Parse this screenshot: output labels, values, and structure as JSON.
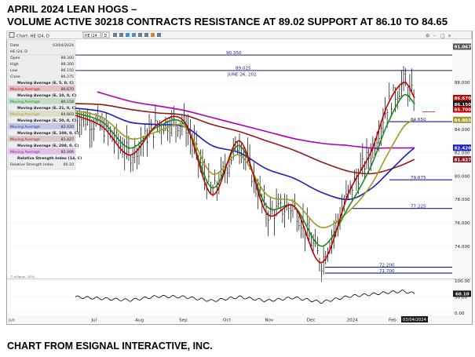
{
  "headline": {
    "line1": "APRIL 2024 LEAN HOGS –",
    "line2": "VOLUME ACTIVE 30218 CONTRACTS  RESISTANCE AT 89.02  SUPPORT AT 86.10 TO 84.65"
  },
  "footer": "CHART FROM ESIGNAL INTERACTIVE, INC.",
  "toolbar": {
    "chart_label": "Chart: HE I24, D",
    "symbol_input": "HE I24",
    "interval": "D"
  },
  "data_window": {
    "rows": [
      {
        "label": "Date",
        "value": "03/04/2024",
        "style": "plain"
      },
      {
        "label": "HE I24, D",
        "value": "",
        "style": "plain"
      },
      {
        "label": "Open",
        "value": "88.300",
        "style": "plain"
      },
      {
        "label": "High",
        "value": "88.300",
        "style": "plain"
      },
      {
        "label": "Low",
        "value": "86.150",
        "style": "plain"
      },
      {
        "label": "Close",
        "value": "86.275",
        "style": "plain"
      },
      {
        "label": "Moving Average (E, 5, 0, C)",
        "value": "",
        "style": "header"
      },
      {
        "label": "Moving Average",
        "value": "86.670",
        "style": "ma5"
      },
      {
        "label": "Moving Average (E, 10, 0, C)",
        "value": "",
        "style": "header"
      },
      {
        "label": "Moving Average",
        "value": "86.158",
        "style": "ma10"
      },
      {
        "label": "Moving Average (E, 21, 0, C)",
        "value": "",
        "style": "header"
      },
      {
        "label": "Moving Average",
        "value": "84.803",
        "style": "ma21"
      },
      {
        "label": "Moving Average (E, 50, 0, C)",
        "value": "",
        "style": "header"
      },
      {
        "label": "Moving Average",
        "value": "82.420",
        "style": "ma50"
      },
      {
        "label": "Moving Average (E, 100, 0, C)",
        "value": "",
        "style": "header"
      },
      {
        "label": "Moving Average",
        "value": "81.427",
        "style": "ma100"
      },
      {
        "label": "Moving Average (E, 200, 0, C)",
        "value": "",
        "style": "header"
      },
      {
        "label": "Moving Average",
        "value": "82.406",
        "style": "ma200"
      },
      {
        "label": "Relative Strength Index (14, C)",
        "value": "",
        "style": "header"
      },
      {
        "label": "Relative Strength Index",
        "value": "60.10",
        "style": "plain"
      }
    ]
  },
  "watermark": "© eSignal, 2024",
  "colors": {
    "ma5": "#c00000",
    "ma10": "#1a8a1a",
    "ma21": "#a09a20",
    "ma50": "#1c1cc0",
    "ma100": "#8b1a1a",
    "ma200": "#b000b0",
    "level_line": "#1a1a80",
    "price_bars": "#000000",
    "rsi_line": "#000000"
  },
  "chart_data": [
    {
      "type": "line",
      "title": "",
      "x_tick_labels": [
        "Jul",
        "Aug",
        "Sep",
        "Oct",
        "Nov",
        "Dec",
        "2024",
        "Feb"
      ],
      "x_current_label": "03/04/2024",
      "y_tick_labels": [
        "74.000",
        "76.000",
        "78.000",
        "80.000",
        "82.000",
        "84.000",
        "86.000",
        "88.000"
      ],
      "ylim": [
        71.5,
        91.5
      ],
      "price_badges": [
        {
          "value": "91.067",
          "color": "#555555"
        },
        {
          "value": "86.670",
          "color": "#c00000"
        },
        {
          "value": "86.150",
          "color": "#111111"
        },
        {
          "value": "85.700",
          "color": "#c00000"
        },
        {
          "value": "84.803",
          "color": "#a09a20"
        },
        {
          "value": "82.420",
          "color": "#1c1cc0"
        },
        {
          "value": "81.427",
          "color": "#8b1a1a"
        }
      ],
      "levels": [
        {
          "value": 90.35,
          "label": "90.350"
        },
        {
          "value": 89.025,
          "label": "89.025",
          "sublabel": "JUNE 26, 202"
        },
        {
          "value": 84.65,
          "label": "84.650"
        },
        {
          "value": 79.675,
          "label": "79.675"
        },
        {
          "value": 77.225,
          "label": "77.225"
        },
        {
          "value": 72.2,
          "label": "72.200"
        },
        {
          "value": 71.7,
          "label": "71.700"
        }
      ],
      "series": [
        {
          "key": "ma5",
          "name": "Moving Average (E, 5, 0, C)",
          "x": [
            0,
            20,
            40,
            60,
            80,
            100,
            120,
            140,
            160,
            180,
            200,
            216,
            228,
            240,
            248
          ],
          "y": [
            85.2,
            84.2,
            81.8,
            84.4,
            84.6,
            78.4,
            83.0,
            76.8,
            77.4,
            72.6,
            78.6,
            82.0,
            86.0,
            88.0,
            86.67
          ]
        },
        {
          "key": "ma10",
          "name": "Moving Average (E, 10, 0, C)",
          "x": [
            0,
            20,
            40,
            60,
            80,
            100,
            120,
            140,
            160,
            180,
            200,
            216,
            228,
            240,
            248
          ],
          "y": [
            85.4,
            84.6,
            82.4,
            84.2,
            84.4,
            79.0,
            82.6,
            77.4,
            77.4,
            74.0,
            77.4,
            80.8,
            84.4,
            86.9,
            86.16
          ]
        },
        {
          "key": "ma21",
          "name": "Moving Average (E, 21, 0, C)",
          "x": [
            0,
            20,
            40,
            60,
            80,
            100,
            120,
            140,
            160,
            180,
            200,
            216,
            228,
            240,
            248
          ],
          "y": [
            85.6,
            85.0,
            83.2,
            83.8,
            84.2,
            80.2,
            81.8,
            78.4,
            77.8,
            75.6,
            77.0,
            79.2,
            81.8,
            84.2,
            84.8
          ]
        },
        {
          "key": "ma50",
          "name": "Moving Average (E, 50, 0, C)",
          "x": [
            0,
            20,
            40,
            60,
            80,
            100,
            120,
            140,
            160,
            180,
            200,
            216,
            228,
            240,
            248
          ],
          "y": [
            85.8,
            85.5,
            84.6,
            84.4,
            84.2,
            82.6,
            82.0,
            80.6,
            79.8,
            78.6,
            78.0,
            78.9,
            80.2,
            81.6,
            82.42
          ]
        },
        {
          "key": "ma100",
          "name": "Moving Average (E, 100, 0, C)",
          "x": [
            0,
            20,
            40,
            60,
            80,
            100,
            120,
            140,
            160,
            180,
            200,
            216,
            228,
            240,
            248
          ],
          "y": [
            86.2,
            86.1,
            85.7,
            85.4,
            85.2,
            84.4,
            83.8,
            83.0,
            82.2,
            81.2,
            80.4,
            80.2,
            80.5,
            81.0,
            81.43
          ]
        },
        {
          "key": "ma200",
          "name": "Moving Average (E, 200, 0, C)",
          "x": [
            16,
            40,
            60,
            80,
            100,
            120,
            140,
            160,
            180,
            200,
            216,
            228,
            240,
            248
          ],
          "y": [
            87.2,
            86.4,
            86.0,
            85.6,
            85.0,
            84.4,
            83.8,
            83.2,
            82.8,
            82.6,
            82.4,
            82.4,
            82.4,
            82.41
          ]
        }
      ]
    },
    {
      "type": "line",
      "title": "Relative Strength Index (14, C)",
      "current_value": "60.10",
      "y_tick_labels": [
        "100.00",
        "50.00",
        "0.00"
      ],
      "ylim": [
        0,
        100
      ],
      "x": [
        0,
        20,
        40,
        60,
        80,
        100,
        120,
        140,
        160,
        180,
        200,
        216,
        228,
        240,
        248
      ],
      "values": [
        50,
        45,
        40,
        52,
        50,
        38,
        50,
        38,
        48,
        34,
        52,
        58,
        64,
        68,
        60.1
      ]
    }
  ]
}
